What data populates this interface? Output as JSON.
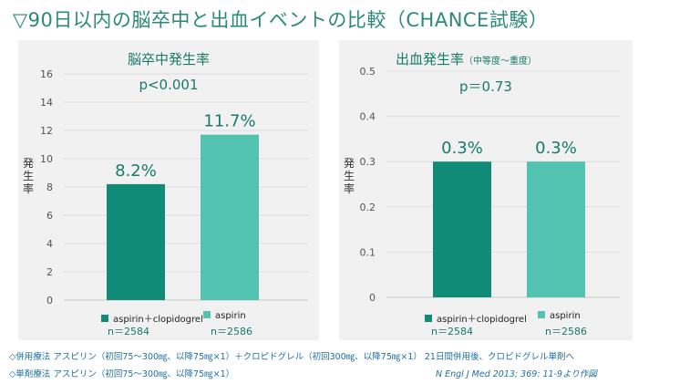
{
  "title": "▽90日以内の脳卒中と出血イベントの比較（CHANCE試験）",
  "colors": {
    "dark": "#0f8b78",
    "light": "#52c3b1",
    "panel_bg": "#f1f1f1",
    "title": "#2a8a7a"
  },
  "chart_data": [
    {
      "type": "bar",
      "title": "脳卒中発生率",
      "subtitle": "p<0.001",
      "ylabel": "発生率",
      "ylim": [
        0,
        16
      ],
      "yticks": [
        "0",
        "2",
        "4",
        "6",
        "8",
        "10",
        "12",
        "14",
        "16"
      ],
      "categories": [
        "aspirin＋clopidogrel",
        "aspirin"
      ],
      "values": [
        8.2,
        11.7
      ],
      "value_labels": [
        "8.2%",
        "11.7%"
      ],
      "n_labels": [
        "n＝2584",
        "n＝2586"
      ],
      "grid": true,
      "legend": "bottom"
    },
    {
      "type": "bar",
      "title": "出血発生率",
      "title_note": "（中等度～重度）",
      "subtitle": "p＝0.73",
      "ylabel": "発生率",
      "ylim": [
        0,
        0.5
      ],
      "yticks": [
        "0",
        "0.1",
        "0.2",
        "0.3",
        "0.4",
        "0.5"
      ],
      "categories": [
        "aspirin＋clopidogrel",
        "aspirin"
      ],
      "values": [
        0.3,
        0.3
      ],
      "value_labels": [
        "0.3%",
        "0.3%"
      ],
      "n_labels": [
        "n＝2584",
        "n＝2586"
      ],
      "grid": true,
      "legend": "bottom"
    }
  ],
  "footnotes": {
    "combo": "◇併用療法 アスピリン（初回75～300㎎、以降75㎎×1）＋クロピドグレル（初回300㎎、以降75㎎×1） 21日間併用後、クロピドグレル単剤へ",
    "single": "◇単剤療法 アスピリン（初回75～300㎎、以降75㎎×1）",
    "citation": "N Engl J Med 2013; 369: 11-9より作図"
  }
}
